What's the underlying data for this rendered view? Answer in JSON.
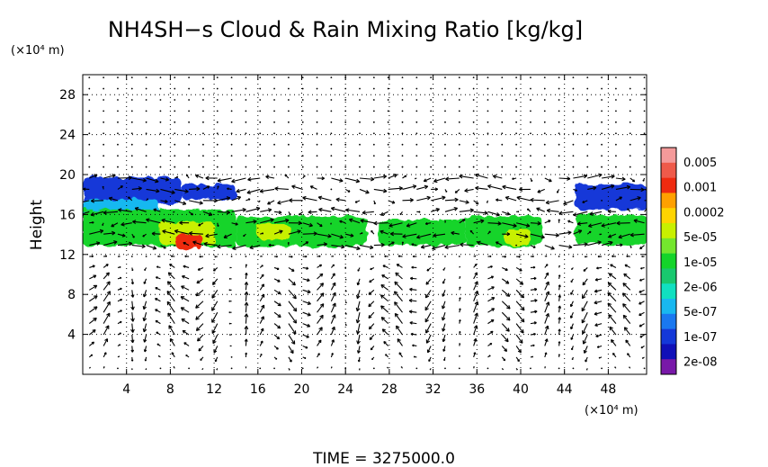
{
  "chart_data": {
    "type": "heatmap",
    "title": "NH4SH−s Cloud & Rain Mixing Ratio [kg/kg]",
    "ylabel": "Height",
    "y_unit": "(×10⁴ m)",
    "x_unit": "(×10⁴ m)",
    "xlim": [
      0,
      51.5
    ],
    "ylim": [
      0,
      30
    ],
    "x_ticks": [
      4,
      8,
      12,
      16,
      20,
      24,
      28,
      32,
      36,
      40,
      44,
      48
    ],
    "x_tick_labels": [
      "4",
      "8",
      "12",
      "16",
      "20",
      "24",
      "28",
      "32",
      "36",
      "40",
      "44",
      "48"
    ],
    "y_ticks": [
      4,
      8,
      12,
      16,
      20,
      24,
      28
    ],
    "y_tick_labels": [
      "4",
      "8",
      "12",
      "16",
      "20",
      "24",
      "28"
    ],
    "grid": true,
    "colorbar": {
      "labels": [
        "0.005",
        "0.001",
        "0.0002",
        "5e-05",
        "1e-05",
        "2e-06",
        "5e-07",
        "1e-07",
        "2e-08"
      ],
      "colors": [
        "#f49a9a",
        "#ee5a4a",
        "#ee2a10",
        "#ffa000",
        "#ffd400",
        "#c8f000",
        "#74e62e",
        "#14d42a",
        "#18c86e",
        "#10e0c0",
        "#18b8f0",
        "#1a78f0",
        "#1438d8",
        "#1010b8",
        "#7818a8"
      ],
      "placement": "right"
    },
    "cloud_regions": [
      {
        "x": [
          0,
          9
        ],
        "y": [
          17,
          19.7
        ],
        "level": "1e-07"
      },
      {
        "x": [
          9,
          14
        ],
        "y": [
          17.5,
          19
        ],
        "level": "1e-07"
      },
      {
        "x": [
          0,
          7
        ],
        "y": [
          15.5,
          17.5
        ],
        "level": "5e-07"
      },
      {
        "x": [
          0,
          14
        ],
        "y": [
          12.8,
          16.5
        ],
        "level": "1e-05"
      },
      {
        "x": [
          14,
          26
        ],
        "y": [
          12.8,
          15.8
        ],
        "level": "1e-05"
      },
      {
        "x": [
          27,
          35
        ],
        "y": [
          13,
          15.5
        ],
        "level": "1e-05"
      },
      {
        "x": [
          35,
          42
        ],
        "y": [
          12.8,
          15.8
        ],
        "level": "1e-05"
      },
      {
        "x": [
          45,
          51.5
        ],
        "y": [
          13,
          16
        ],
        "level": "1e-05"
      },
      {
        "x": [
          45,
          51.5
        ],
        "y": [
          16.5,
          19
        ],
        "level": "1e-07"
      },
      {
        "x": [
          7,
          12
        ],
        "y": [
          13,
          15.3
        ],
        "level": "5e-05"
      },
      {
        "x": [
          8.5,
          11
        ],
        "y": [
          12.5,
          14
        ],
        "level": "0.001"
      },
      {
        "x": [
          16,
          19
        ],
        "y": [
          13.5,
          15
        ],
        "level": "5e-05"
      },
      {
        "x": [
          38.5,
          41
        ],
        "y": [
          13,
          14.5
        ],
        "level": "5e-05"
      }
    ],
    "footer": "TIME = 3275000.0"
  }
}
